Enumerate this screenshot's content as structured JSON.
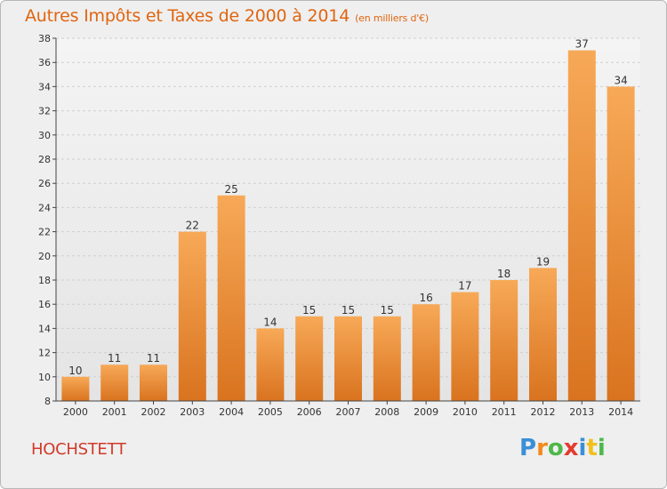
{
  "title": "Autres Impôts et Taxes de 2000 à 2014",
  "subtitle": "(en milliers d'€)",
  "commune": "HOCHSTETT",
  "logo": {
    "letters": [
      "P",
      "r",
      "o",
      "x",
      "i",
      "t",
      "i"
    ],
    "colors": [
      "#3a8fd6",
      "#f28a1c",
      "#4db84a",
      "#e33b2f",
      "#3a8fd6",
      "#f2c01c",
      "#4db84a"
    ]
  },
  "colors": {
    "bar_light": "#f7a957",
    "bar_dark": "#d9731f",
    "title": "#e06510",
    "grid": "#d0d0d0"
  },
  "chart_data": {
    "type": "bar",
    "categories": [
      "2000",
      "2001",
      "2002",
      "2003",
      "2004",
      "2005",
      "2006",
      "2007",
      "2008",
      "2009",
      "2010",
      "2011",
      "2012",
      "2013",
      "2014"
    ],
    "values": [
      10,
      11,
      11,
      22,
      25,
      14,
      15,
      15,
      15,
      16,
      17,
      18,
      19,
      37,
      34
    ],
    "ylim": [
      8,
      38
    ],
    "yticks": [
      8,
      10,
      12,
      14,
      16,
      18,
      20,
      22,
      24,
      26,
      28,
      30,
      32,
      34,
      36,
      38
    ],
    "grid": true
  }
}
